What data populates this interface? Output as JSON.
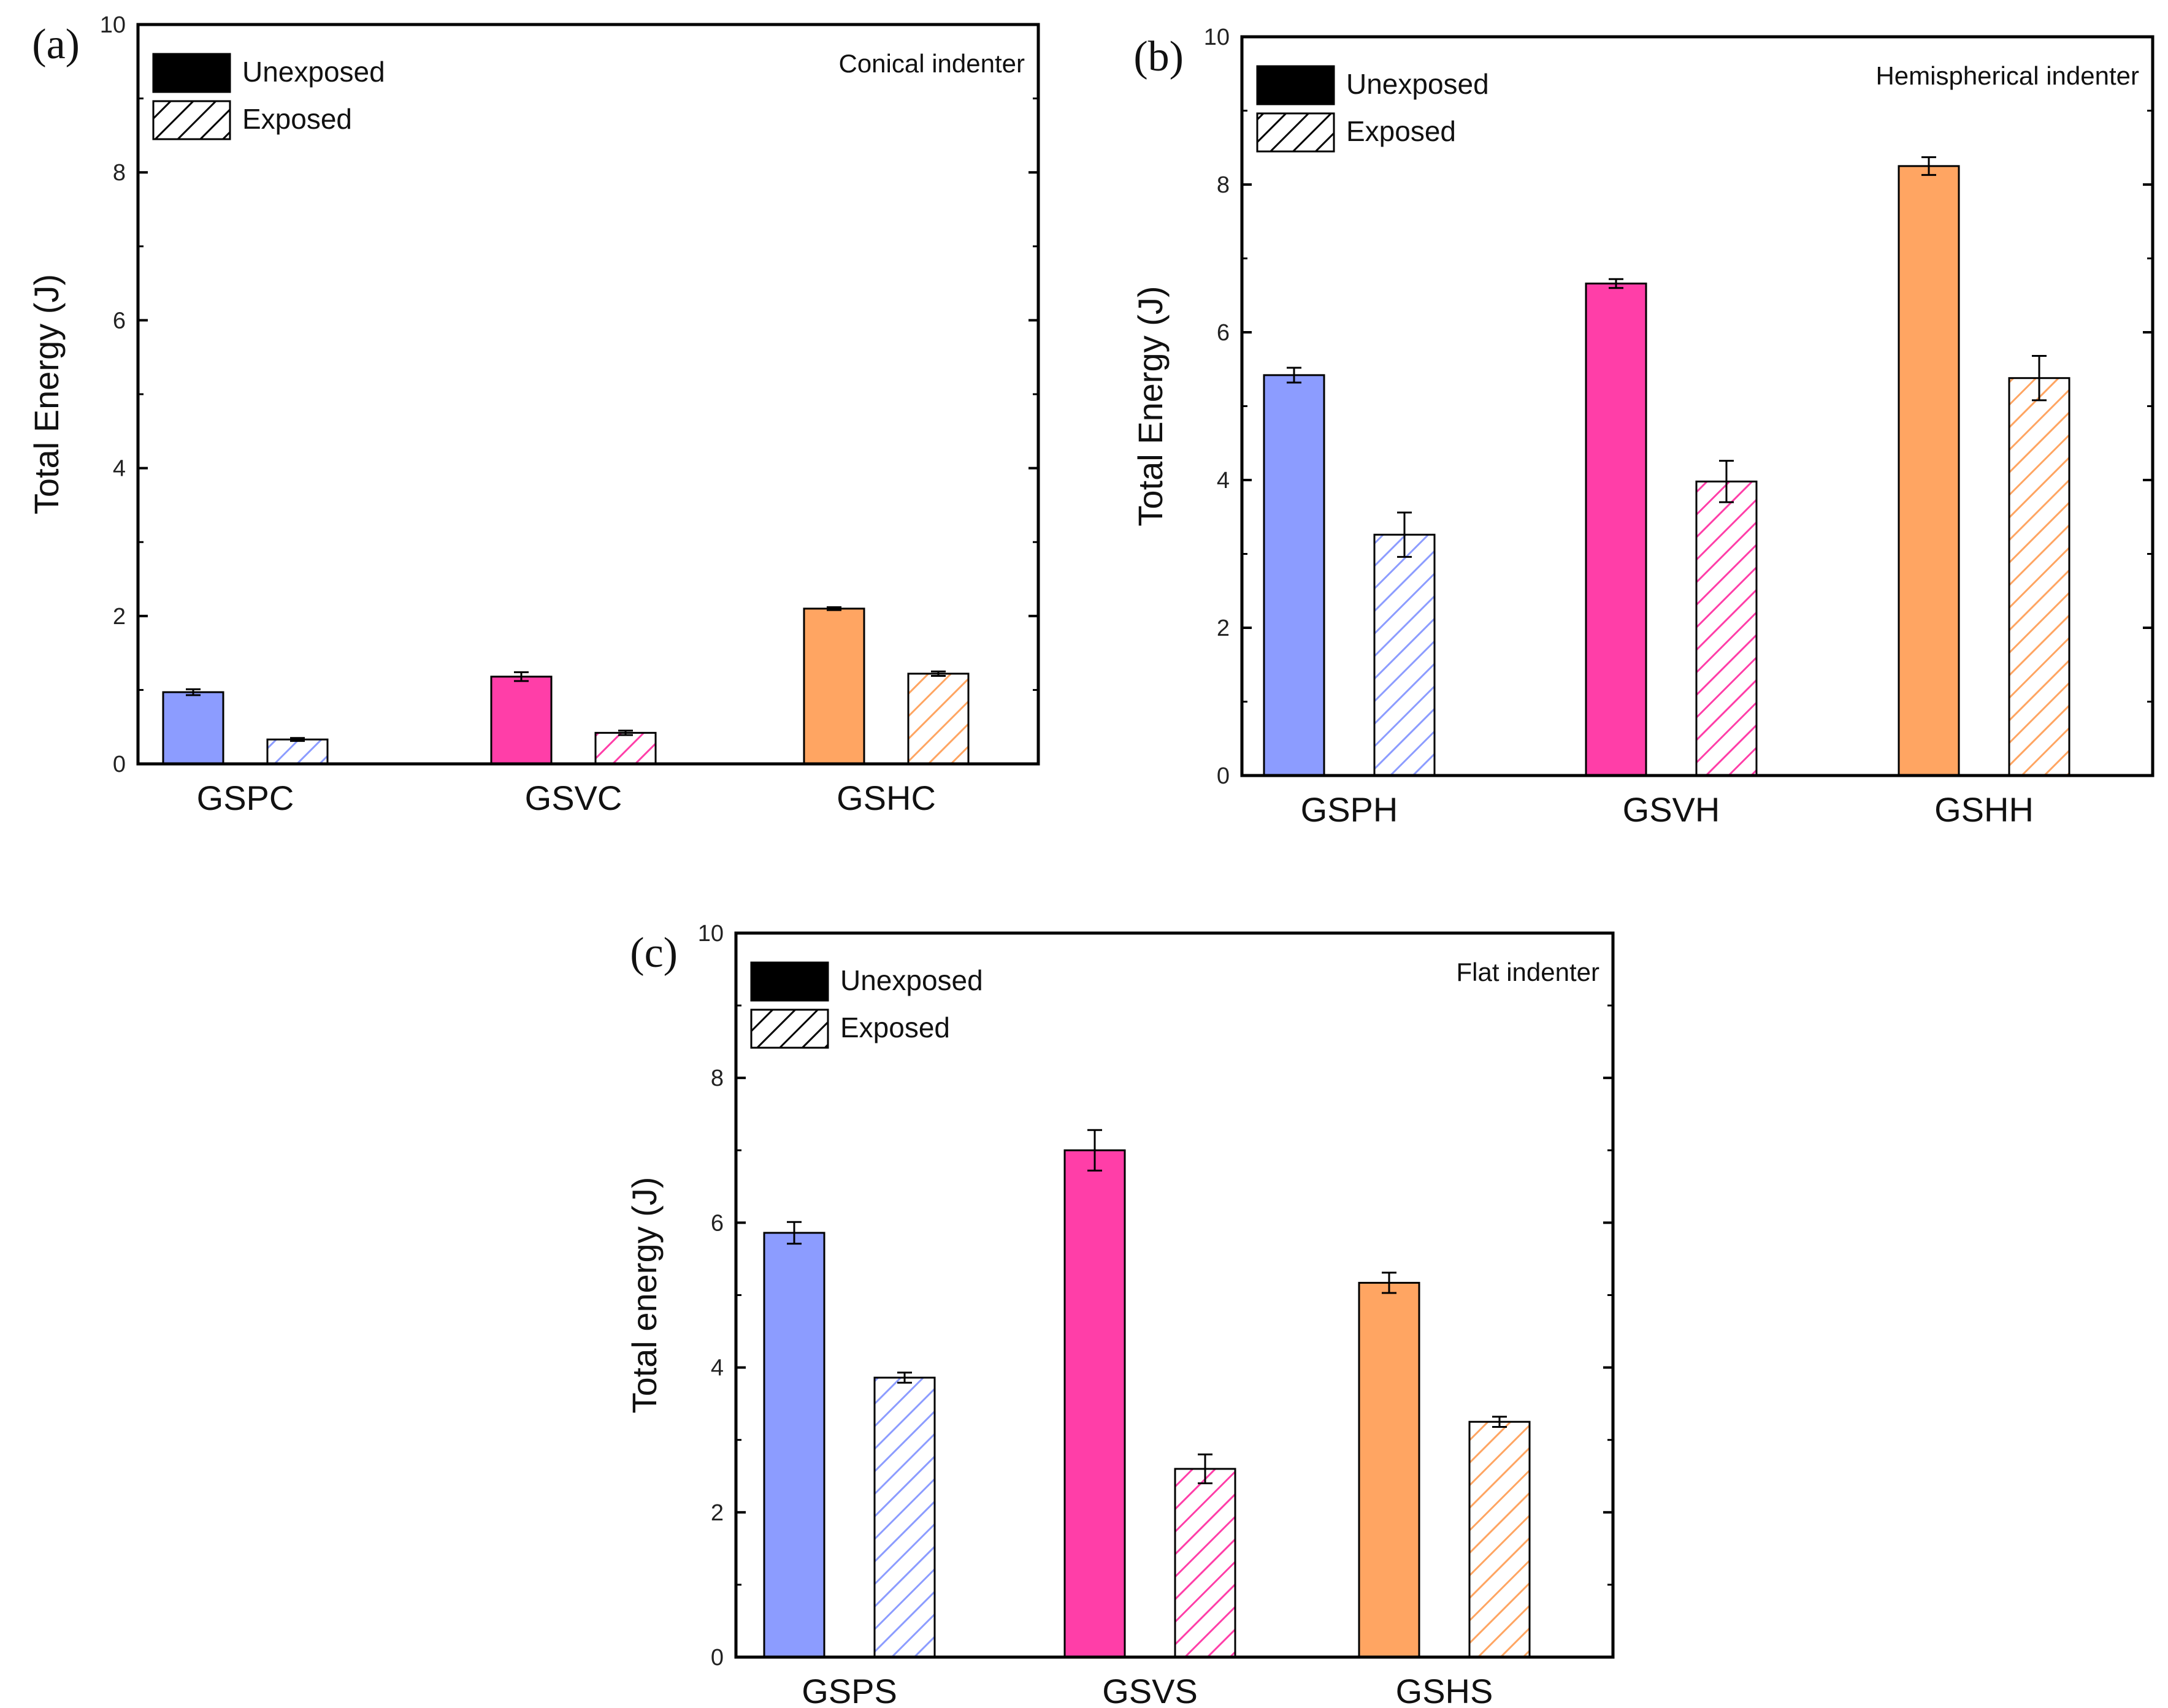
{
  "colors": {
    "GSP": "#8c9cff",
    "GSV": "#ff3ea8",
    "GSH": "#ffa562",
    "frame": "#000000"
  },
  "legend": {
    "unexposed": "Unexposed",
    "exposed": "Exposed"
  },
  "chart_data": [
    {
      "type": "bar",
      "panel": "(a)",
      "title": "Conical indenter",
      "ylabel": "Total Energy (J)",
      "ylim": [
        0,
        10
      ],
      "yticks": [
        "0",
        "2",
        "4",
        "6",
        "8",
        "10"
      ],
      "categories": [
        "GSPC",
        "GSVC",
        "GSHC"
      ],
      "series": [
        {
          "name": "Unexposed",
          "values": [
            0.97,
            1.18,
            2.1
          ],
          "errors": [
            0.04,
            0.06,
            0.02
          ]
        },
        {
          "name": "Exposed",
          "values": [
            0.33,
            0.42,
            1.22
          ],
          "errors": [
            0.02,
            0.03,
            0.03
          ]
        }
      ]
    },
    {
      "type": "bar",
      "panel": "(b)",
      "title": "Hemispherical indenter",
      "ylabel": "Total Energy (J)",
      "ylim": [
        0,
        10
      ],
      "yticks": [
        "0",
        "2",
        "4",
        "6",
        "8",
        "10"
      ],
      "categories": [
        "GSPH",
        "GSVH",
        "GSHH"
      ],
      "series": [
        {
          "name": "Unexposed",
          "values": [
            5.42,
            6.66,
            8.25
          ],
          "errors": [
            0.1,
            0.06,
            0.12
          ]
        },
        {
          "name": "Exposed",
          "values": [
            3.26,
            3.98,
            5.38
          ],
          "errors": [
            0.3,
            0.28,
            0.3
          ]
        }
      ]
    },
    {
      "type": "bar",
      "panel": "(c)",
      "title": "Flat indenter",
      "ylabel": "Total energy (J)",
      "ylim": [
        0,
        10
      ],
      "yticks": [
        "0",
        "2",
        "4",
        "6",
        "8",
        "10"
      ],
      "categories": [
        "GSPS",
        "GSVS",
        "GSHS"
      ],
      "series": [
        {
          "name": "Unexposed",
          "values": [
            5.86,
            7.0,
            5.17
          ],
          "errors": [
            0.15,
            0.28,
            0.14
          ]
        },
        {
          "name": "Exposed",
          "values": [
            3.86,
            2.6,
            3.25
          ],
          "errors": [
            0.07,
            0.2,
            0.07
          ]
        }
      ]
    }
  ]
}
